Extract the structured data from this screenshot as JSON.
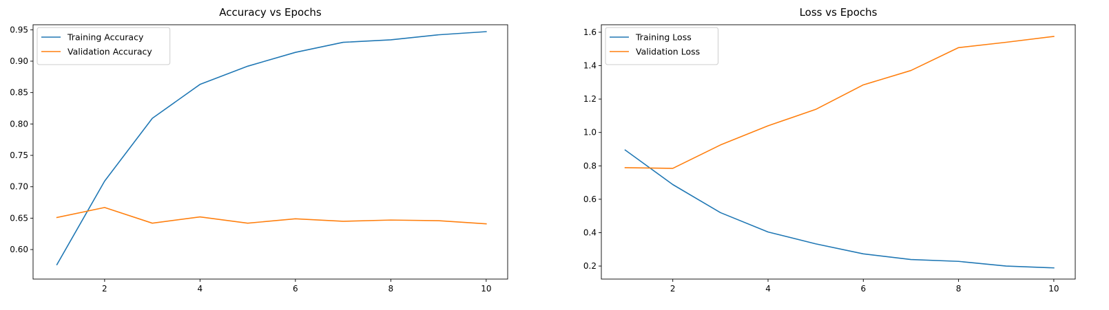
{
  "chart_data": [
    {
      "type": "line",
      "title": "Accuracy vs Epochs",
      "xlabel": "",
      "ylabel": "",
      "x": [
        1,
        2,
        3,
        4,
        5,
        6,
        7,
        8,
        9,
        10
      ],
      "xlim": [
        0.5,
        10.45
      ],
      "ylim": [
        0.553,
        0.958
      ],
      "xticks": [
        2,
        4,
        6,
        8,
        10
      ],
      "yticks": [
        0.6,
        0.65,
        0.7,
        0.75,
        0.8,
        0.85,
        0.9,
        0.95
      ],
      "ytick_labels": [
        "0.60",
        "0.65",
        "0.70",
        "0.75",
        "0.80",
        "0.85",
        "0.90",
        "0.95"
      ],
      "legend_position": "top-left",
      "grid": false,
      "series": [
        {
          "name": "Training Accuracy",
          "color": "#1f77b4",
          "values": [
            0.576,
            0.709,
            0.809,
            0.863,
            0.892,
            0.914,
            0.93,
            0.934,
            0.942,
            0.947
          ]
        },
        {
          "name": "Validation Accuracy",
          "color": "#ff7f0e",
          "values": [
            0.651,
            0.667,
            0.642,
            0.652,
            0.642,
            0.649,
            0.645,
            0.647,
            0.646,
            0.641
          ]
        }
      ]
    },
    {
      "type": "line",
      "title": "Loss vs Epochs",
      "xlabel": "",
      "ylabel": "",
      "x": [
        1,
        2,
        3,
        4,
        5,
        6,
        7,
        8,
        9,
        10
      ],
      "xlim": [
        0.5,
        10.45
      ],
      "ylim": [
        0.122,
        1.645
      ],
      "xticks": [
        2,
        4,
        6,
        8,
        10
      ],
      "yticks": [
        0.2,
        0.4,
        0.6,
        0.8,
        1.0,
        1.2,
        1.4,
        1.6
      ],
      "ytick_labels": [
        "0.2",
        "0.4",
        "0.6",
        "0.8",
        "1.0",
        "1.2",
        "1.4",
        "1.6"
      ],
      "legend_position": "top-left",
      "grid": false,
      "series": [
        {
          "name": "Training Loss",
          "color": "#1f77b4",
          "values": [
            0.895,
            0.688,
            0.52,
            0.404,
            0.333,
            0.273,
            0.239,
            0.228,
            0.2,
            0.189
          ]
        },
        {
          "name": "Validation Loss",
          "color": "#ff7f0e",
          "values": [
            0.789,
            0.785,
            0.925,
            1.04,
            1.138,
            1.285,
            1.371,
            1.508,
            1.54,
            1.575
          ]
        }
      ]
    }
  ]
}
